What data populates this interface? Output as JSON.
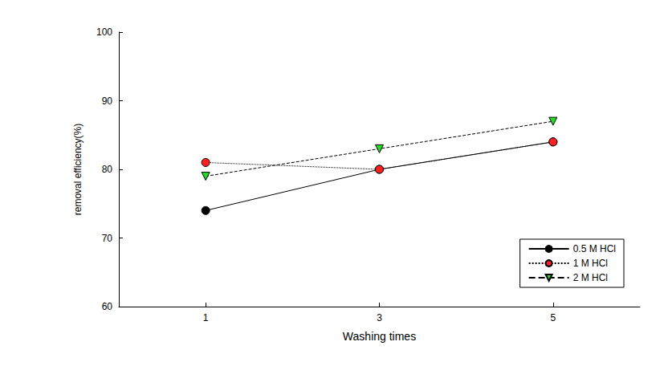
{
  "chart_data": {
    "type": "line",
    "x_label": "Washing times",
    "y_label": "removal efficiency(%)",
    "xlim": [
      0,
      6
    ],
    "xticks": [
      1,
      3,
      5
    ],
    "ylim": [
      60,
      100
    ],
    "yticks": [
      60,
      70,
      80,
      90,
      100
    ],
    "grid": false,
    "legend": "lower right",
    "series": [
      {
        "name": "0.5 M HCl",
        "color": "#000000",
        "marker": "circle",
        "line_style": "solid",
        "x": [
          1,
          3,
          5
        ],
        "values": [
          74,
          80,
          84
        ]
      },
      {
        "name": "1 M HCl",
        "color": "#ff2020",
        "marker": "circle",
        "line_style": "dotted",
        "x": [
          1,
          3,
          5
        ],
        "values": [
          81,
          80,
          84
        ]
      },
      {
        "name": "2 M HCl",
        "color": "#22dd22",
        "marker": "triangle-down",
        "line_style": "dashed",
        "x": [
          1,
          3,
          5
        ],
        "values": [
          79,
          83,
          87
        ]
      }
    ]
  }
}
